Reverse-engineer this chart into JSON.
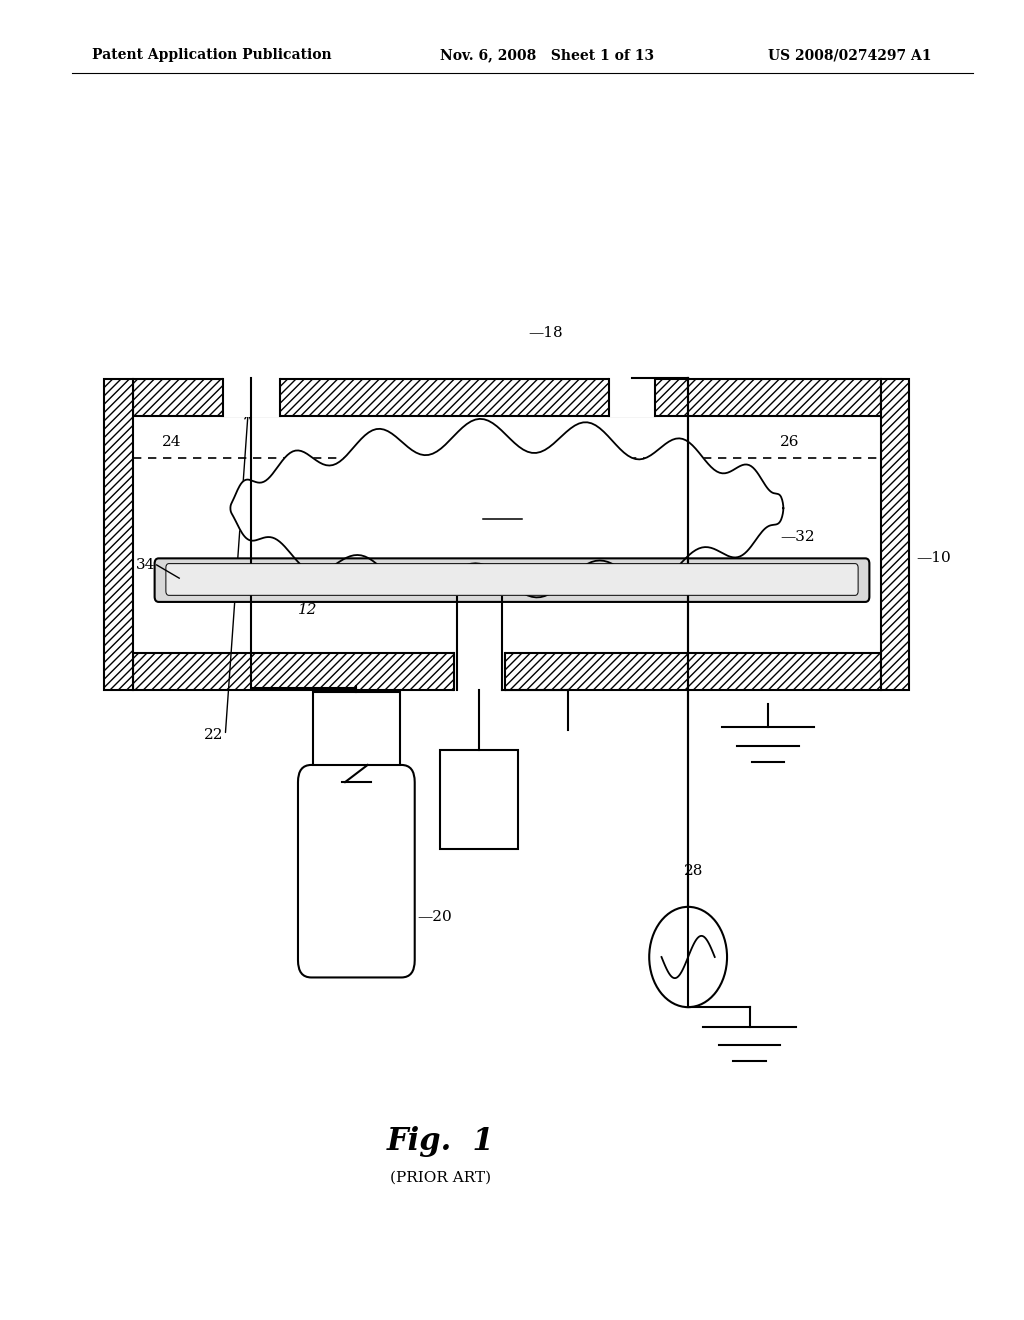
{
  "bg_color": "#ffffff",
  "line_color": "#000000",
  "header_left": "Patent Application Publication",
  "header_mid": "Nov. 6, 2008   Sheet 1 of 13",
  "header_right": "US 2008/0274297 A1",
  "fig_label": "Fig.  1",
  "fig_sublabel": "(PRIOR ART)",
  "ch_l": 0.13,
  "ch_r": 0.86,
  "ch_t": 0.685,
  "ch_b": 0.505,
  "wall_t": 0.028
}
